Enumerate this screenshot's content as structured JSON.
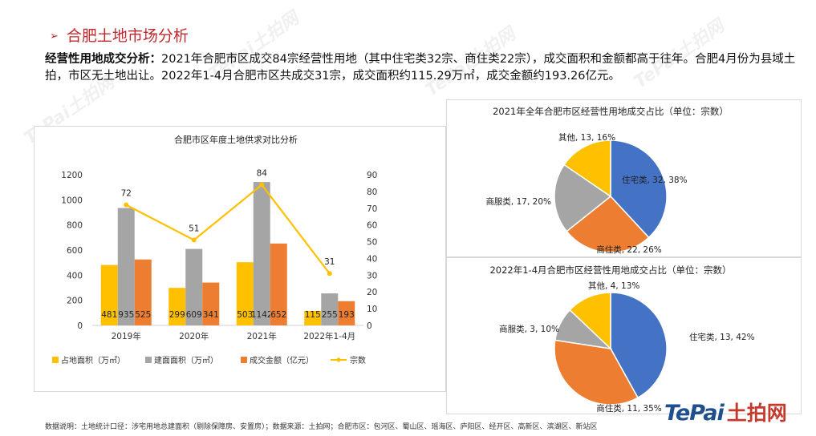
{
  "page": {
    "title_arrow": "➢",
    "title": "合肥土地市场分析",
    "summary_label": "经营性用地成交分析：",
    "summary_text": "2021年合肥市区成交84宗经营性用地（其中住宅类32宗、商住类22宗），成交面积和金额都高于往年。合肥4月份为县域土拍，市区无土地出让。2022年1-4月合肥市区共成交31宗，成交面积约115.29万㎡，成交金额约193.26亿元。",
    "footer": "数据说明：土地统计口径：涉宅用地总建面积（剔除保障房、安置房）；数据来源：土拍网；合肥市区：包河区、蜀山区、瑶海区、庐阳区、经开区、高新区、滨湖区、新站区",
    "logo_en": "TePai",
    "logo_cn": "土拍网",
    "watermark": "TePai土拍网"
  },
  "chart_data": [
    {
      "type": "bar",
      "title": "合肥市区年度土地供求对比分析",
      "categories": [
        "2019年",
        "2020年",
        "2021年",
        "2022年1-4月"
      ],
      "series": [
        {
          "name": "占地面积（万㎡）",
          "type": "bar",
          "axis": "left",
          "color": "#ffc000",
          "values": [
            481,
            299,
            503,
            115
          ]
        },
        {
          "name": "建面面积（万㎡）",
          "type": "bar",
          "axis": "left",
          "color": "#a5a5a5",
          "values": [
            935,
            609,
            1142,
            255
          ]
        },
        {
          "name": "成交金额（亿元）",
          "type": "bar",
          "axis": "left",
          "color": "#ed7d31",
          "values": [
            525,
            341,
            652,
            193
          ]
        },
        {
          "name": "宗数",
          "type": "line",
          "axis": "right",
          "color": "#ffc000",
          "values": [
            72,
            51,
            84,
            31
          ]
        }
      ],
      "ylim": [
        0,
        1200
      ],
      "yticks": [
        0,
        200,
        400,
        600,
        800,
        1000,
        1200
      ],
      "y2lim": [
        0,
        90
      ],
      "y2ticks": [
        0,
        10,
        20,
        30,
        40,
        50,
        60,
        70,
        80,
        90
      ],
      "legend": "bottom"
    },
    {
      "type": "pie",
      "title": "2021年全年合肥市区经营性用地成交占比（单位：宗数）",
      "slices": [
        {
          "name": "住宅类",
          "value": 32,
          "label": "住宅类, 32, 38%",
          "color": "#4472c4"
        },
        {
          "name": "商住类",
          "value": 22,
          "label": "商住类, 22, 26%",
          "color": "#ed7d31"
        },
        {
          "name": "商服类",
          "value": 17,
          "label": "商服类, 17, 20%",
          "color": "#a5a5a5"
        },
        {
          "name": "其他",
          "value": 13,
          "label": "其他, 13, 16%",
          "color": "#ffc000"
        }
      ]
    },
    {
      "type": "pie",
      "title": "2022年1-4月合肥市区经营性用地成交占比（单位：宗数）",
      "slices": [
        {
          "name": "住宅类",
          "value": 13,
          "label": "住宅类, 13, 42%",
          "color": "#4472c4"
        },
        {
          "name": "商住类",
          "value": 11,
          "label": "商住类, 11, 35%",
          "color": "#ed7d31"
        },
        {
          "name": "商服类",
          "value": 3,
          "label": "商服类, 3, 10%",
          "color": "#a5a5a5"
        },
        {
          "name": "其他",
          "value": 4,
          "label": "其他, 4, 13%",
          "color": "#ffc000"
        }
      ]
    }
  ]
}
